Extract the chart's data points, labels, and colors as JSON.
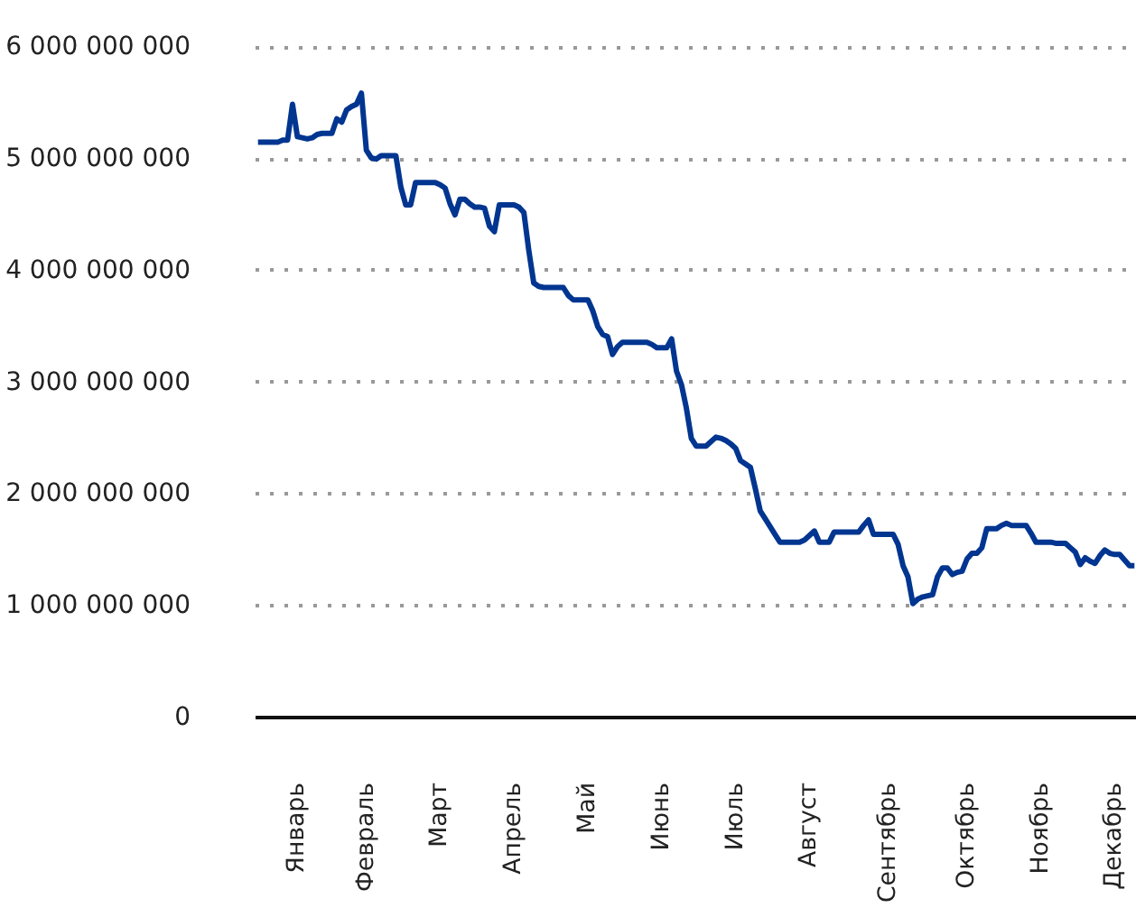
{
  "chart_data": {
    "type": "line",
    "ylim": [
      0,
      6000000000
    ],
    "yticks": [
      {
        "value": 0,
        "label": "0"
      },
      {
        "value": 1000000000,
        "label": "1 000 000 000"
      },
      {
        "value": 2000000000,
        "label": "2 000 000 000"
      },
      {
        "value": 3000000000,
        "label": "3 000 000 000"
      },
      {
        "value": 4000000000,
        "label": "4 000 000 000"
      },
      {
        "value": 5000000000,
        "label": "5 000 000 000"
      },
      {
        "value": 6000000000,
        "label": "6 000 000 000"
      }
    ],
    "categories": [
      null,
      null,
      null,
      null,
      null,
      null,
      null,
      null,
      "Январь",
      null,
      null,
      null,
      null,
      null,
      null,
      null,
      null,
      null,
      null,
      null,
      null,
      null,
      "Февраль",
      null,
      null,
      null,
      null,
      null,
      null,
      null,
      null,
      null,
      null,
      null,
      null,
      null,
      null,
      "Март",
      null,
      null,
      null,
      null,
      null,
      null,
      null,
      null,
      null,
      null,
      null,
      null,
      null,
      null,
      "Апрель",
      null,
      null,
      null,
      null,
      null,
      null,
      null,
      null,
      null,
      null,
      null,
      null,
      null,
      null,
      "Май",
      null,
      null,
      null,
      null,
      null,
      null,
      null,
      null,
      null,
      null,
      null,
      null,
      null,
      null,
      "Июнь",
      null,
      null,
      null,
      null,
      null,
      null,
      null,
      null,
      null,
      null,
      null,
      null,
      null,
      null,
      "Июль",
      null,
      null,
      null,
      null,
      null,
      null,
      null,
      null,
      null,
      null,
      null,
      null,
      null,
      null,
      "Август",
      null,
      null,
      null,
      null,
      null,
      null,
      null,
      null,
      null,
      null,
      null,
      null,
      null,
      null,
      null,
      "Сентябрь",
      null,
      null,
      null,
      null,
      null,
      null,
      null,
      null,
      null,
      null,
      null,
      null,
      null,
      null,
      null,
      "Октябрь",
      null,
      null,
      null,
      null,
      null,
      null,
      null,
      null,
      null,
      null,
      null,
      null,
      null,
      null,
      "Ноябрь",
      null,
      null,
      null,
      null,
      null,
      null,
      null,
      null,
      null,
      null,
      null,
      null,
      null,
      null,
      "Декабрь",
      null,
      null,
      null,
      null
    ],
    "grid": "y",
    "line_style": "solid",
    "marker": "none",
    "series": [
      {
        "color": "#003590",
        "values": [
          5150000000,
          5150000000,
          5150000000,
          5150000000,
          5150000000,
          5170000000,
          5170000000,
          5490000000,
          5200000000,
          5190000000,
          5180000000,
          5190000000,
          5220000000,
          5230000000,
          5230000000,
          5230000000,
          5360000000,
          5330000000,
          5440000000,
          5470000000,
          5490000000,
          5590000000,
          5080000000,
          5010000000,
          5000000000,
          5030000000,
          5030000000,
          5030000000,
          5030000000,
          4750000000,
          4590000000,
          4590000000,
          4790000000,
          4790000000,
          4790000000,
          4790000000,
          4790000000,
          4770000000,
          4740000000,
          4600000000,
          4500000000,
          4640000000,
          4640000000,
          4600000000,
          4570000000,
          4570000000,
          4560000000,
          4400000000,
          4350000000,
          4590000000,
          4590000000,
          4590000000,
          4590000000,
          4570000000,
          4520000000,
          4180000000,
          3890000000,
          3860000000,
          3850000000,
          3850000000,
          3850000000,
          3850000000,
          3850000000,
          3780000000,
          3740000000,
          3740000000,
          3740000000,
          3740000000,
          3640000000,
          3500000000,
          3430000000,
          3410000000,
          3250000000,
          3320000000,
          3360000000,
          3360000000,
          3360000000,
          3360000000,
          3360000000,
          3360000000,
          3340000000,
          3310000000,
          3310000000,
          3310000000,
          3390000000,
          3100000000,
          2980000000,
          2770000000,
          2500000000,
          2430000000,
          2430000000,
          2430000000,
          2470000000,
          2510000000,
          2500000000,
          2480000000,
          2450000000,
          2410000000,
          2300000000,
          2270000000,
          2240000000,
          2050000000,
          1850000000,
          1780000000,
          1710000000,
          1640000000,
          1570000000,
          1570000000,
          1570000000,
          1570000000,
          1570000000,
          1590000000,
          1630000000,
          1670000000,
          1570000000,
          1570000000,
          1570000000,
          1660000000,
          1660000000,
          1660000000,
          1660000000,
          1660000000,
          1660000000,
          1720000000,
          1770000000,
          1640000000,
          1640000000,
          1640000000,
          1640000000,
          1640000000,
          1550000000,
          1360000000,
          1260000000,
          1020000000,
          1060000000,
          1080000000,
          1090000000,
          1100000000,
          1260000000,
          1340000000,
          1340000000,
          1280000000,
          1300000000,
          1310000000,
          1420000000,
          1470000000,
          1470000000,
          1520000000,
          1690000000,
          1690000000,
          1690000000,
          1720000000,
          1740000000,
          1720000000,
          1720000000,
          1720000000,
          1720000000,
          1650000000,
          1570000000,
          1570000000,
          1570000000,
          1570000000,
          1560000000,
          1560000000,
          1560000000,
          1520000000,
          1480000000,
          1370000000,
          1430000000,
          1400000000,
          1380000000,
          1450000000,
          1500000000,
          1470000000,
          1460000000,
          1460000000,
          1410000000,
          1360000000,
          1360000000
        ]
      }
    ]
  }
}
